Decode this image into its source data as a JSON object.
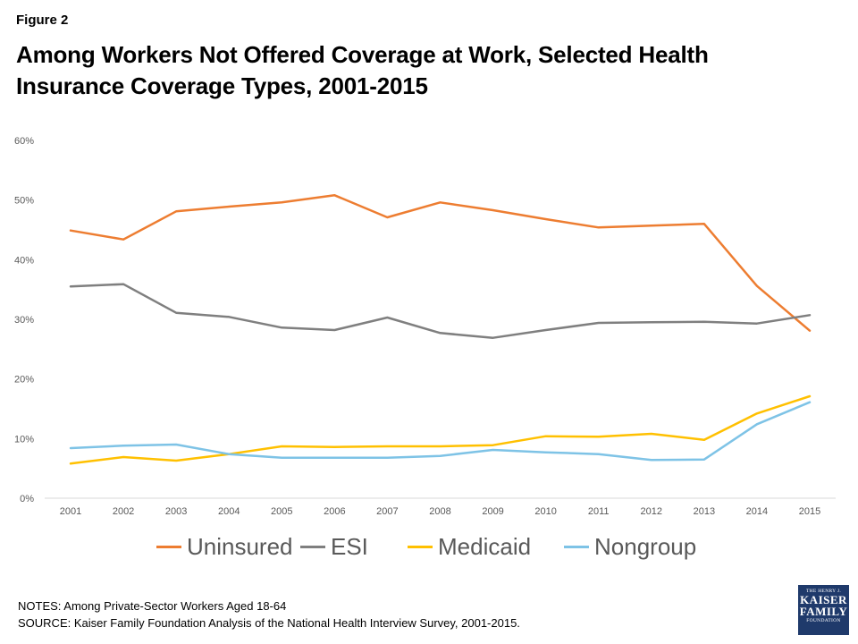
{
  "figure_label": "Figure 2",
  "title": "Among Workers Not Offered Coverage at Work, Selected Health Insurance Coverage Types, 2001-2015",
  "notes": "NOTES: Among Private-Sector Workers Aged 18-64",
  "source": "SOURCE: Kaiser Family Foundation Analysis of the National Health Interview Survey, 2001-2015.",
  "logo": {
    "line1": "THE HENRY J.",
    "line2": "KAISER",
    "line3": "FAMILY",
    "line4": "FOUNDATION"
  },
  "chart_data": {
    "type": "line",
    "title": "",
    "xlabel": "",
    "ylabel": "",
    "categories": [
      "2001",
      "2002",
      "2003",
      "2004",
      "2005",
      "2006",
      "2007",
      "2008",
      "2009",
      "2010",
      "2011",
      "2012",
      "2013",
      "2014",
      "2015"
    ],
    "ylim": [
      0,
      60
    ],
    "yticks": [
      "0%",
      "10%",
      "20%",
      "30%",
      "40%",
      "50%",
      "60%"
    ],
    "grid": false,
    "legend_position": "bottom",
    "series": [
      {
        "name": "Uninsured",
        "color": "#ed7d31",
        "values": [
          44.9,
          43.4,
          48.1,
          48.9,
          49.6,
          50.8,
          47.1,
          49.6,
          48.3,
          46.8,
          45.4,
          45.7,
          46.0,
          35.6,
          28.1
        ]
      },
      {
        "name": "ESI",
        "color": "#7f7f7f",
        "values": [
          35.5,
          35.9,
          31.1,
          30.4,
          28.6,
          28.2,
          30.3,
          27.7,
          26.9,
          28.2,
          29.4,
          29.5,
          29.6,
          29.3,
          30.7
        ]
      },
      {
        "name": "Medicaid",
        "color": "#ffc000",
        "values": [
          5.8,
          6.9,
          6.3,
          7.4,
          8.7,
          8.6,
          8.7,
          8.7,
          8.9,
          10.4,
          10.3,
          10.8,
          9.8,
          14.2,
          17.1
        ]
      },
      {
        "name": "Nongroup",
        "color": "#7ec3e6",
        "values": [
          8.4,
          8.8,
          9.0,
          7.4,
          6.8,
          6.8,
          6.8,
          7.1,
          8.1,
          7.7,
          7.4,
          6.4,
          6.5,
          12.4,
          16.1
        ]
      }
    ]
  }
}
